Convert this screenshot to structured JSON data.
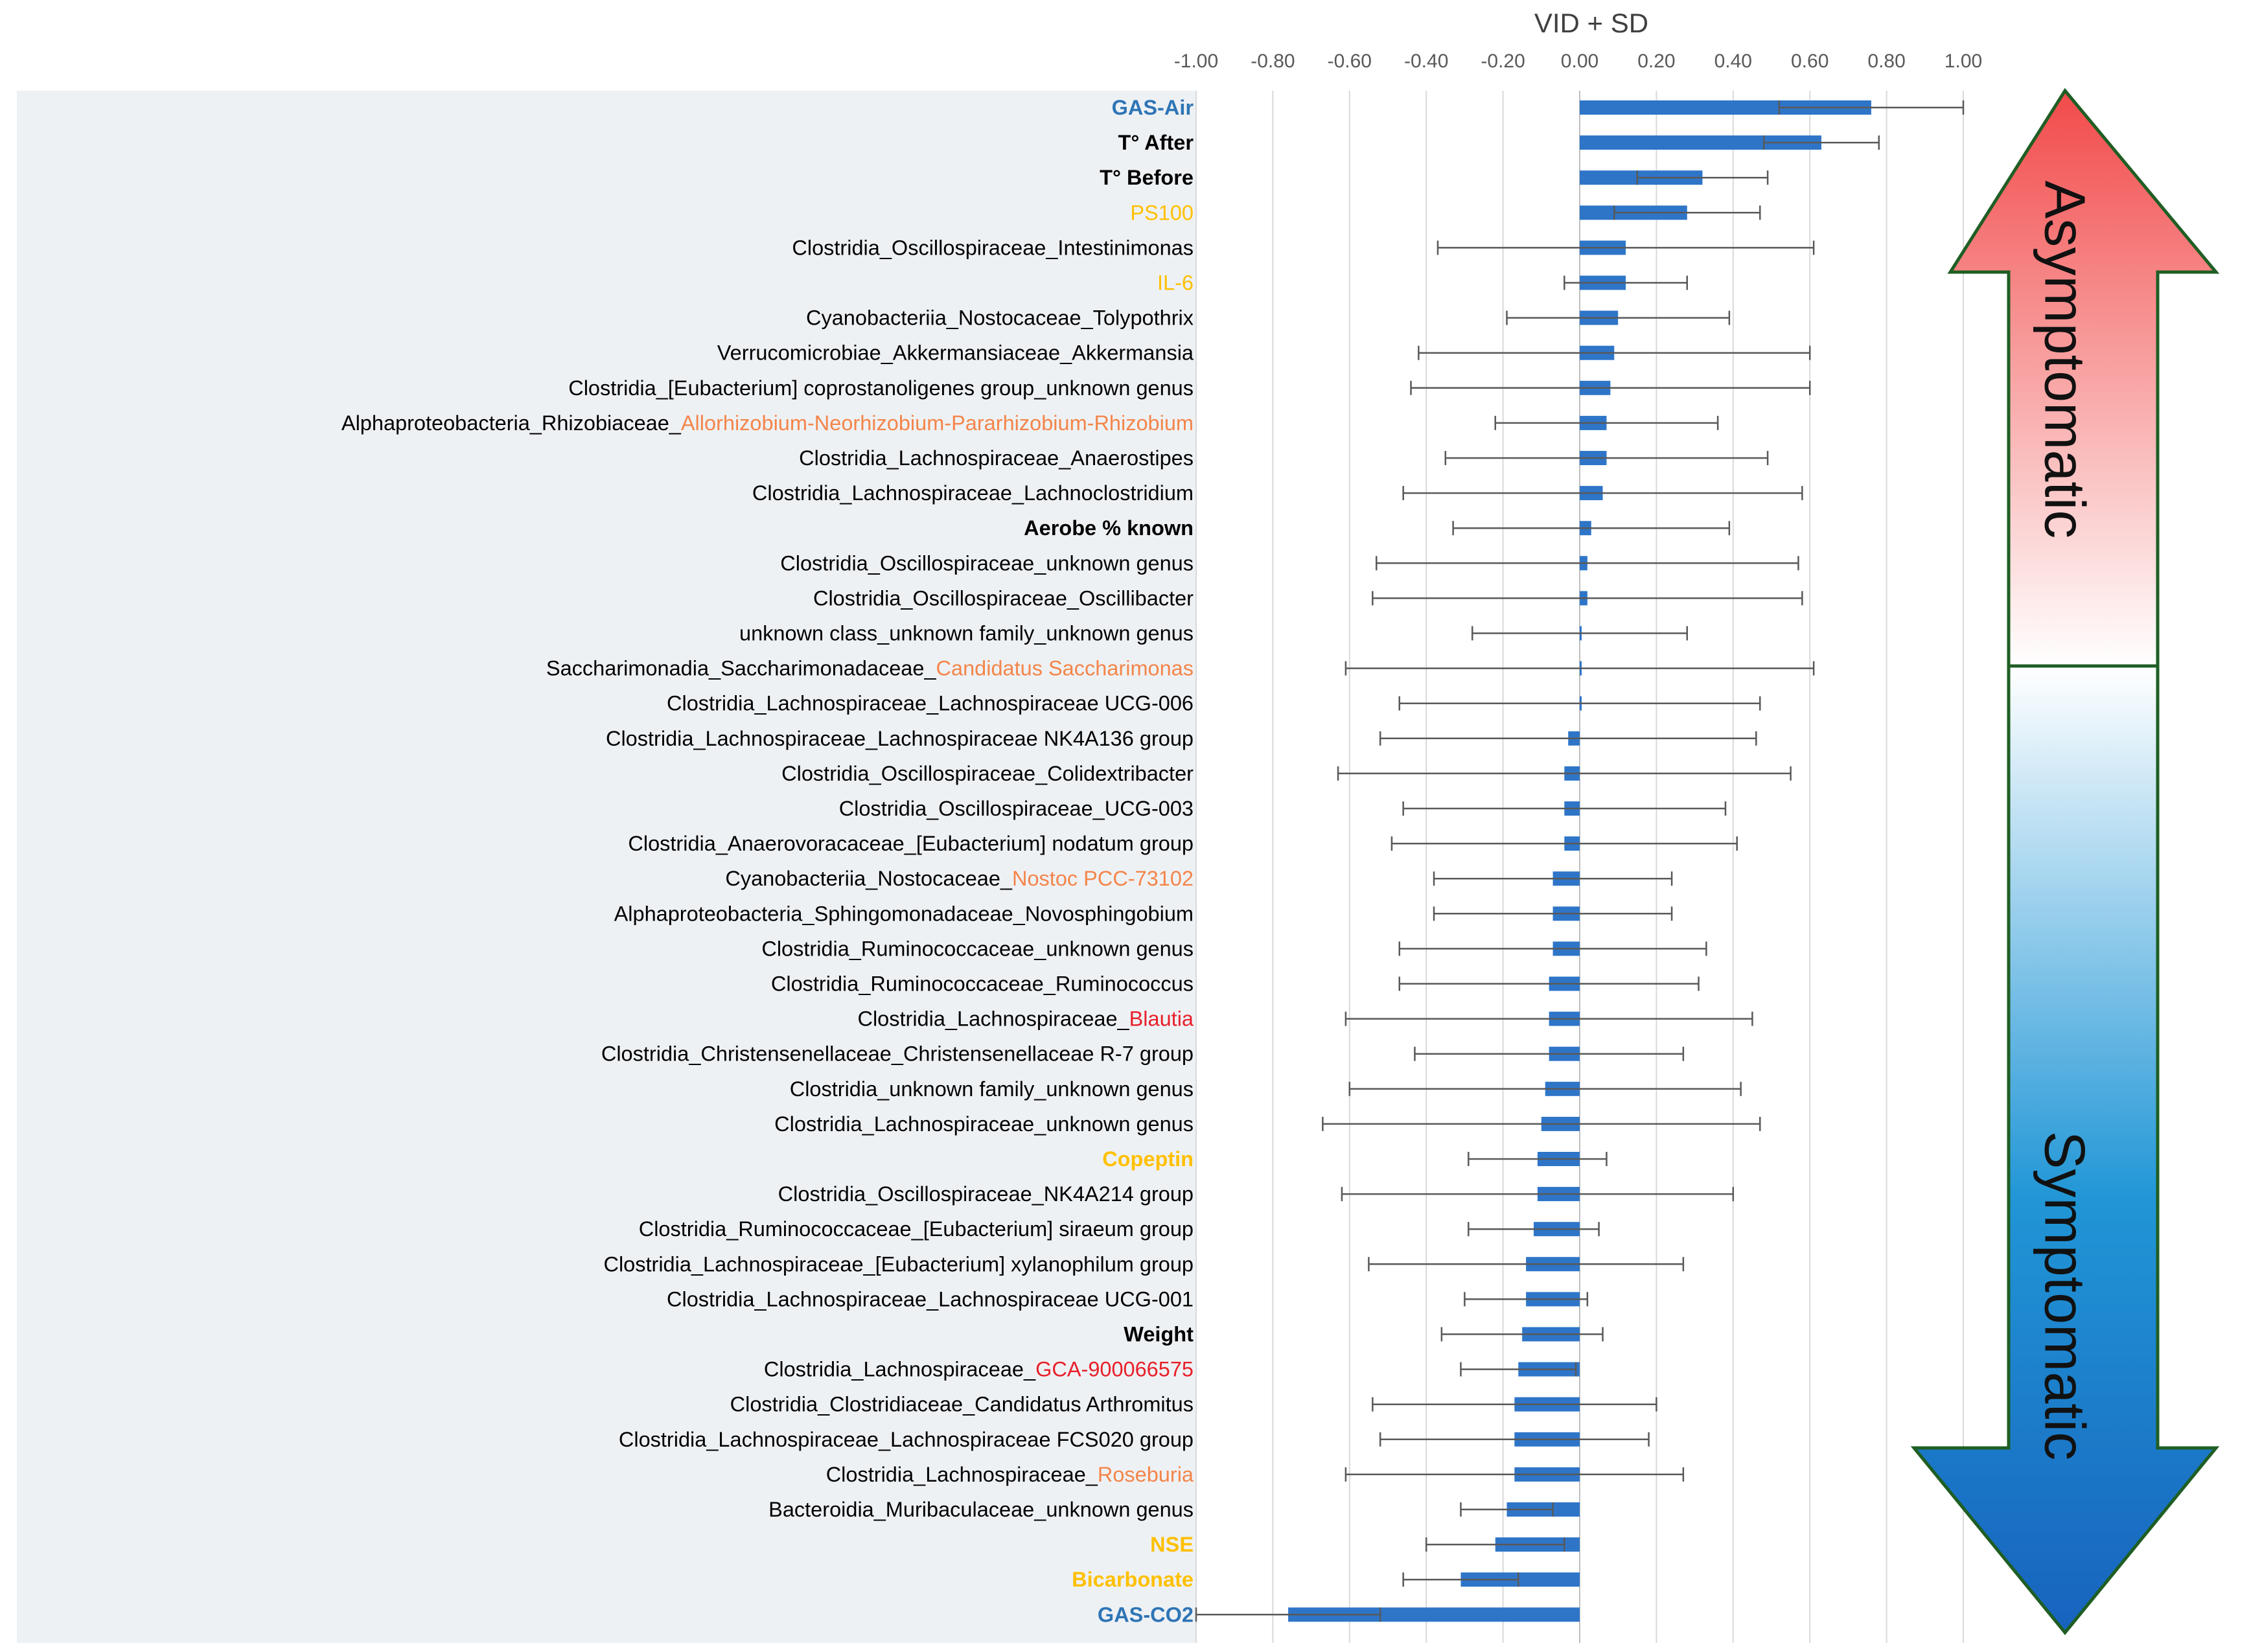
{
  "chart_data": {
    "type": "bar",
    "orientation": "horizontal",
    "title": "VID + SD",
    "xlim": [
      -1.0,
      1.0
    ],
    "x_ticks": [
      "-1.00",
      "-0.80",
      "-0.60",
      "-0.40",
      "-0.20",
      "0.00",
      "0.20",
      "0.40",
      "0.60",
      "0.80",
      "1.00"
    ],
    "grid": true,
    "bar_color": "#2E75C8",
    "error_bar_color": "#595959",
    "categories": [
      {
        "segments": [
          {
            "text": "GAS-Air",
            "color": "#2E75B6",
            "bold": true
          }
        ],
        "value": 0.76,
        "error": 0.24
      },
      {
        "segments": [
          {
            "text": "T° After",
            "color": "#000000",
            "bold": true
          }
        ],
        "value": 0.63,
        "error": 0.15
      },
      {
        "segments": [
          {
            "text": "T° Before",
            "color": "#000000",
            "bold": true
          }
        ],
        "value": 0.32,
        "error": 0.17
      },
      {
        "segments": [
          {
            "text": "PS100",
            "color": "#FFC000",
            "bold": false
          }
        ],
        "value": 0.28,
        "error": 0.19
      },
      {
        "segments": [
          {
            "text": "Clostridia_Oscillospiraceae_Intestinimonas",
            "color": "#000000",
            "bold": false
          }
        ],
        "value": 0.12,
        "error": 0.49
      },
      {
        "segments": [
          {
            "text": "IL-6",
            "color": "#FFC000",
            "bold": false
          }
        ],
        "value": 0.12,
        "error": 0.16
      },
      {
        "segments": [
          {
            "text": "Cyanobacteriia_Nostocaceae_Tolypothrix",
            "color": "#000000",
            "bold": false
          }
        ],
        "value": 0.1,
        "error": 0.29
      },
      {
        "segments": [
          {
            "text": "Verrucomicrobiae_Akkermansiaceae_Akkermansia",
            "color": "#000000",
            "bold": false
          }
        ],
        "value": 0.09,
        "error": 0.51
      },
      {
        "segments": [
          {
            "text": "Clostridia_[Eubacterium] coprostanoligenes group_unknown genus",
            "color": "#000000",
            "bold": false
          }
        ],
        "value": 0.08,
        "error": 0.52
      },
      {
        "segments": [
          {
            "text": "Alphaproteobacteria_Rhizobiaceae_",
            "color": "#000000",
            "bold": false
          },
          {
            "text": "Allorhizobium-Neorhizobium-Pararhizobium-Rhizobium",
            "color": "#F4854A",
            "bold": false
          }
        ],
        "value": 0.07,
        "error": 0.29
      },
      {
        "segments": [
          {
            "text": "Clostridia_Lachnospiraceae_Anaerostipes",
            "color": "#000000",
            "bold": false
          }
        ],
        "value": 0.07,
        "error": 0.42
      },
      {
        "segments": [
          {
            "text": "Clostridia_Lachnospiraceae_Lachnoclostridium",
            "color": "#000000",
            "bold": false
          }
        ],
        "value": 0.06,
        "error": 0.52
      },
      {
        "segments": [
          {
            "text": "Aerobe % known",
            "color": "#000000",
            "bold": true
          }
        ],
        "value": 0.03,
        "error": 0.36
      },
      {
        "segments": [
          {
            "text": "Clostridia_Oscillospiraceae_unknown genus",
            "color": "#000000",
            "bold": false
          }
        ],
        "value": 0.02,
        "error": 0.55
      },
      {
        "segments": [
          {
            "text": "Clostridia_Oscillospiraceae_Oscillibacter",
            "color": "#000000",
            "bold": false
          }
        ],
        "value": 0.02,
        "error": 0.56
      },
      {
        "segments": [
          {
            "text": "unknown class_unknown family_unknown genus",
            "color": "#000000",
            "bold": false
          }
        ],
        "value": 0.0,
        "error": 0.28
      },
      {
        "segments": [
          {
            "text": "Saccharimonadia_Saccharimonadaceae_",
            "color": "#000000",
            "bold": false
          },
          {
            "text": "Candidatus Saccharimonas",
            "color": "#F4854A",
            "bold": false
          }
        ],
        "value": 0.0,
        "error": 0.61
      },
      {
        "segments": [
          {
            "text": "Clostridia_Lachnospiraceae_Lachnospiraceae UCG-006",
            "color": "#000000",
            "bold": false
          }
        ],
        "value": 0.0,
        "error": 0.47
      },
      {
        "segments": [
          {
            "text": "Clostridia_Lachnospiraceae_Lachnospiraceae NK4A136 group",
            "color": "#000000",
            "bold": false
          }
        ],
        "value": -0.03,
        "error": 0.49
      },
      {
        "segments": [
          {
            "text": "Clostridia_Oscillospiraceae_Colidextribacter",
            "color": "#000000",
            "bold": false
          }
        ],
        "value": -0.04,
        "error": 0.59
      },
      {
        "segments": [
          {
            "text": "Clostridia_Oscillospiraceae_UCG-003",
            "color": "#000000",
            "bold": false
          }
        ],
        "value": -0.04,
        "error": 0.42
      },
      {
        "segments": [
          {
            "text": "Clostridia_Anaerovoracaceae_[Eubacterium] nodatum group",
            "color": "#000000",
            "bold": false
          }
        ],
        "value": -0.04,
        "error": 0.45
      },
      {
        "segments": [
          {
            "text": "Cyanobacteriia_Nostocaceae_",
            "color": "#000000",
            "bold": false
          },
          {
            "text": "Nostoc PCC-73102",
            "color": "#F4854A",
            "bold": false
          }
        ],
        "value": -0.07,
        "error": 0.31
      },
      {
        "segments": [
          {
            "text": "Alphaproteobacteria_Sphingomonadaceae_Novosphingobium",
            "color": "#000000",
            "bold": false
          }
        ],
        "value": -0.07,
        "error": 0.31
      },
      {
        "segments": [
          {
            "text": "Clostridia_Ruminococcaceae_unknown genus",
            "color": "#000000",
            "bold": false
          }
        ],
        "value": -0.07,
        "error": 0.4
      },
      {
        "segments": [
          {
            "text": "Clostridia_Ruminococcaceae_Ruminococcus",
            "color": "#000000",
            "bold": false
          }
        ],
        "value": -0.08,
        "error": 0.39
      },
      {
        "segments": [
          {
            "text": "Clostridia_Lachnospiraceae_",
            "color": "#000000",
            "bold": false
          },
          {
            "text": "Blautia",
            "color": "#E8202A",
            "bold": false
          }
        ],
        "value": -0.08,
        "error": 0.53
      },
      {
        "segments": [
          {
            "text": "Clostridia_Christensenellaceae_Christensenellaceae R-7 group",
            "color": "#000000",
            "bold": false
          }
        ],
        "value": -0.08,
        "error": 0.35
      },
      {
        "segments": [
          {
            "text": "Clostridia_unknown family_unknown genus",
            "color": "#000000",
            "bold": false
          }
        ],
        "value": -0.09,
        "error": 0.51
      },
      {
        "segments": [
          {
            "text": "Clostridia_Lachnospiraceae_unknown genus",
            "color": "#000000",
            "bold": false
          }
        ],
        "value": -0.1,
        "error": 0.57
      },
      {
        "segments": [
          {
            "text": "Copeptin",
            "color": "#FFC000",
            "bold": true
          }
        ],
        "value": -0.11,
        "error": 0.18
      },
      {
        "segments": [
          {
            "text": "Clostridia_Oscillospiraceae_NK4A214 group",
            "color": "#000000",
            "bold": false
          }
        ],
        "value": -0.11,
        "error": 0.51
      },
      {
        "segments": [
          {
            "text": "Clostridia_Ruminococcaceae_[Eubacterium] siraeum group",
            "color": "#000000",
            "bold": false
          }
        ],
        "value": -0.12,
        "error": 0.17
      },
      {
        "segments": [
          {
            "text": "Clostridia_Lachnospiraceae_[Eubacterium] xylanophilum group",
            "color": "#000000",
            "bold": false
          }
        ],
        "value": -0.14,
        "error": 0.41
      },
      {
        "segments": [
          {
            "text": "Clostridia_Lachnospiraceae_Lachnospiraceae UCG-001",
            "color": "#000000",
            "bold": false
          }
        ],
        "value": -0.14,
        "error": 0.16
      },
      {
        "segments": [
          {
            "text": "Weight",
            "color": "#000000",
            "bold": true
          }
        ],
        "value": -0.15,
        "error": 0.21
      },
      {
        "segments": [
          {
            "text": "Clostridia_Lachnospiraceae_",
            "color": "#000000",
            "bold": false
          },
          {
            "text": "GCA-900066575",
            "color": "#E8202A",
            "bold": false
          }
        ],
        "value": -0.16,
        "error": 0.15
      },
      {
        "segments": [
          {
            "text": "Clostridia_Clostridiaceae_Candidatus Arthromitus",
            "color": "#000000",
            "bold": false
          }
        ],
        "value": -0.17,
        "error": 0.37
      },
      {
        "segments": [
          {
            "text": "Clostridia_Lachnospiraceae_Lachnospiraceae FCS020 group",
            "color": "#000000",
            "bold": false
          }
        ],
        "value": -0.17,
        "error": 0.35
      },
      {
        "segments": [
          {
            "text": "Clostridia_Lachnospiraceae_",
            "color": "#000000",
            "bold": false
          },
          {
            "text": "Roseburia",
            "color": "#F4854A",
            "bold": false
          }
        ],
        "value": -0.17,
        "error": 0.44
      },
      {
        "segments": [
          {
            "text": "Bacteroidia_Muribaculaceae_unknown genus",
            "color": "#000000",
            "bold": false
          }
        ],
        "value": -0.19,
        "error": 0.12
      },
      {
        "segments": [
          {
            "text": "NSE",
            "color": "#FFC000",
            "bold": true
          }
        ],
        "value": -0.22,
        "error": 0.18
      },
      {
        "segments": [
          {
            "text": "Bicarbonate",
            "color": "#FFC000",
            "bold": true
          }
        ],
        "value": -0.31,
        "error": 0.15
      },
      {
        "segments": [
          {
            "text": "GAS-CO2",
            "color": "#2E75B6",
            "bold": true
          }
        ],
        "value": -0.76,
        "error": 0.24
      }
    ]
  },
  "arrows": {
    "up_label": "Asymptomatic",
    "down_label": "Symptomatic",
    "up_color_top": "#F24A4A",
    "down_color_bottom": "#1763BE",
    "mid_color": "#FFFFFF"
  }
}
